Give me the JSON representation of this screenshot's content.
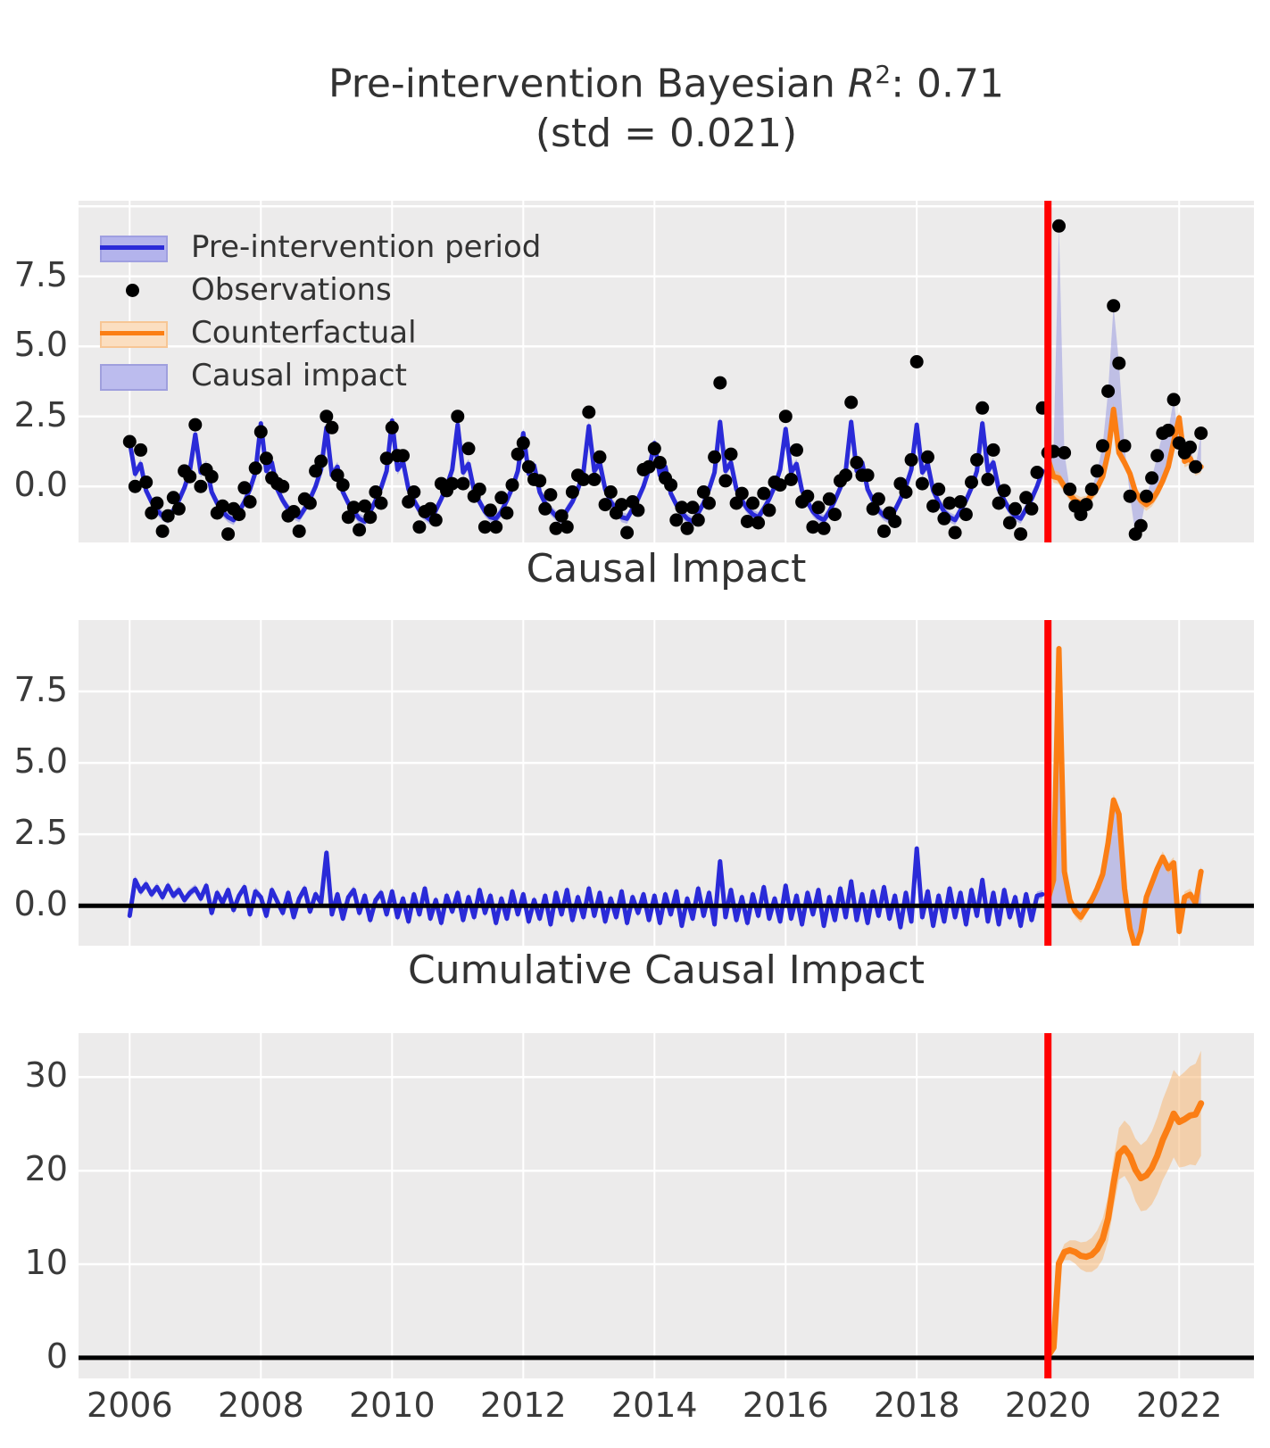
{
  "figure": {
    "title_line1_prefix": "Pre-intervention Bayesian ",
    "title_line1_rvar": "R",
    "title_line1_sup": "2",
    "title_line1_suffix": ": 0.71",
    "title_line2": "(std = 0.021)"
  },
  "legend": {
    "items": [
      {
        "label": "Pre-intervention period",
        "swatch": "blue-line-band"
      },
      {
        "label": "Observations",
        "swatch": "black-dot"
      },
      {
        "label": "Counterfactual",
        "swatch": "orange-line-band"
      },
      {
        "label": "Causal impact",
        "swatch": "periwinkle-patch"
      }
    ]
  },
  "chart_data": {
    "type": "line",
    "title": "Pre-intervention Bayesian R2: 0.71 (std = 0.021)",
    "x_start": 2006.0,
    "x_step": 0.083333,
    "xlim": [
      2005.22,
      2023.14
    ],
    "intervention_x": 2020.0,
    "xticks": [
      2006,
      2008,
      2010,
      2012,
      2014,
      2016,
      2018,
      2020,
      2022
    ],
    "xtick_labels": [
      "2006",
      "2008",
      "2010",
      "2012",
      "2014",
      "2016",
      "2018",
      "2020",
      "2022"
    ],
    "colors": {
      "pre_line": "#2a2ad8",
      "pre_band": "#8c8ce0",
      "counterfactual_line": "#fb7e14",
      "counterfactual_band": "#f7b877",
      "impact_fill": "#9a9ae0",
      "observations": "#000000",
      "intervention_line": "#ff0000",
      "zero_line": "#000000",
      "panel_bg": "#ecebeb",
      "grid": "#ffffff",
      "text": "#3a3a3a"
    },
    "bands": {
      "panel1_pre": 0.18,
      "panel1_post": 0.22,
      "panel2_pre": 0.15,
      "panel2_post": 0.2,
      "panel3_start": 0.3,
      "panel3_growth": 0.19
    },
    "panels": [
      {
        "title": "",
        "ylim": [
          -2.0,
          10.2
        ],
        "yticks": [
          0.0,
          2.5,
          5.0,
          7.5
        ],
        "ytick_labels": [
          "0.0",
          "2.5",
          "5.0",
          "7.5"
        ],
        "ygrid": [
          0,
          2.5,
          5,
          7.5,
          10
        ]
      },
      {
        "title": "Causal Impact",
        "ylim": [
          -1.4,
          10.0
        ],
        "yticks": [
          0.0,
          2.5,
          5.0,
          7.5
        ],
        "ytick_labels": [
          "0.0",
          "2.5",
          "5.0",
          "7.5"
        ],
        "ygrid": [
          0,
          2.5,
          5,
          7.5
        ]
      },
      {
        "title": "Cumulative Causal Impact",
        "ylim": [
          -2.2,
          34.7
        ],
        "yticks": [
          0,
          10,
          20,
          30
        ],
        "ytick_labels": [
          "0",
          "10",
          "20",
          "30"
        ],
        "ygrid": [
          0,
          10,
          20,
          30
        ]
      }
    ],
    "series": {
      "fitted_pre": [
        1.6,
        0.45,
        0.8,
        -0.15,
        -0.55,
        -0.85,
        -1.05,
        -1.15,
        -0.85,
        -0.5,
        -0.05,
        0.55,
        1.85,
        0.5,
        0.75,
        -0.2,
        -0.6,
        -0.9,
        -1.1,
        -1.2,
        -0.9,
        -0.55,
        -0.1,
        0.5,
        2.25,
        0.55,
        0.85,
        -0.1,
        -0.5,
        -0.8,
        -1.0,
        -1.1,
        -0.8,
        -0.45,
        0.0,
        0.6,
        2.1,
        0.4,
        0.7,
        -0.2,
        -0.6,
        -0.9,
        -1.15,
        -1.25,
        -0.9,
        -0.5,
        -0.05,
        0.55,
        2.35,
        0.6,
        0.9,
        -0.1,
        -0.5,
        -0.85,
        -1.05,
        -1.2,
        -0.85,
        -0.45,
        0.0,
        0.6,
        2.2,
        0.5,
        0.8,
        -0.15,
        -0.55,
        -0.9,
        -1.1,
        -1.15,
        -0.9,
        -0.5,
        -0.05,
        0.55,
        1.9,
        0.45,
        0.75,
        -0.2,
        -0.6,
        -0.85,
        -1.05,
        -1.2,
        -0.85,
        -0.55,
        -0.1,
        0.5,
        2.15,
        0.55,
        0.85,
        -0.1,
        -0.55,
        -0.8,
        -1.1,
        -1.15,
        -0.8,
        -0.45,
        0.0,
        0.6,
        1.55,
        0.4,
        0.7,
        -0.25,
        -0.65,
        -0.95,
        -1.15,
        -1.25,
        -0.95,
        -0.6,
        -0.1,
        0.5,
        2.3,
        0.55,
        0.85,
        -0.1,
        -0.5,
        -0.8,
        -1.0,
        -1.1,
        -0.8,
        -0.45,
        0.0,
        0.6,
        2.05,
        0.5,
        0.8,
        -0.15,
        -0.55,
        -0.9,
        -1.1,
        -1.2,
        -0.9,
        -0.5,
        -0.05,
        0.55,
        2.3,
        0.55,
        0.85,
        -0.1,
        -0.5,
        -0.85,
        -1.05,
        -1.15,
        -0.85,
        -0.45,
        0.0,
        0.6,
        2.2,
        0.5,
        0.8,
        -0.15,
        -0.55,
        -0.9,
        -1.1,
        -1.2,
        -0.85,
        -0.5,
        -0.05,
        0.55,
        2.25,
        0.55,
        0.85,
        -0.1,
        -0.5,
        -0.85,
        -1.05,
        -1.15,
        -0.8,
        -0.45,
        0.0,
        0.55
      ],
      "residual_pre": [
        0.0,
        -0.45,
        0.5,
        0.3,
        -0.4,
        0.25,
        -0.55,
        0.1,
        0.45,
        -0.3,
        0.6,
        -0.2,
        0.35,
        -0.5,
        -0.15,
        0.55,
        -0.35,
        0.2,
        -0.6,
        0.4,
        -0.1,
        0.5,
        -0.45,
        0.15,
        -0.3,
        0.45,
        -0.55,
        0.2,
        0.5,
        -0.25,
        0.1,
        -0.5,
        0.35,
        -0.15,
        0.55,
        0.3,
        0.4,
        1.7,
        -0.3,
        0.25,
        -0.5,
        0.15,
        -0.4,
        0.55,
        -0.2,
        0.3,
        -0.55,
        0.45,
        -0.25,
        0.5,
        0.2,
        -0.45,
        0.3,
        -0.6,
        0.15,
        0.4,
        -0.35,
        0.55,
        -0.15,
        -0.5,
        0.3,
        -0.4,
        0.55,
        -0.2,
        0.45,
        -0.55,
        0.25,
        -0.3,
        0.5,
        -0.45,
        0.1,
        0.6,
        -0.35,
        0.25,
        -0.5,
        0.4,
        -0.2,
        0.55,
        -0.45,
        0.15,
        -0.6,
        0.35,
        0.5,
        -0.25,
        0.5,
        -0.3,
        0.2,
        -0.55,
        0.35,
        -0.15,
        0.45,
        -0.5,
        0.25,
        -0.4,
        0.6,
        0.1,
        -0.2,
        0.45,
        -0.4,
        0.3,
        -0.55,
        0.2,
        -0.35,
        0.5,
        -0.25,
        0.4,
        -0.5,
        0.55,
        1.4,
        -0.35,
        0.3,
        -0.5,
        0.25,
        -0.45,
        0.4,
        -0.2,
        0.55,
        -0.4,
        0.15,
        -0.55,
        0.45,
        -0.25,
        0.5,
        -0.4,
        0.2,
        -0.55,
        0.35,
        -0.3,
        0.45,
        -0.5,
        0.25,
        -0.15,
        0.7,
        0.3,
        -0.45,
        0.5,
        -0.3,
        0.4,
        -0.55,
        0.2,
        -0.4,
        0.55,
        -0.2,
        0.35,
        2.25,
        -0.4,
        0.25,
        -0.55,
        0.45,
        -0.25,
        0.5,
        -0.45,
        0.3,
        -0.5,
        0.2,
        0.4,
        0.55,
        -0.3,
        0.45,
        -0.5,
        0.35,
        -0.45,
        0.25,
        -0.55,
        0.4,
        -0.35,
        0.5,
        2.25
      ],
      "impact_pre": [
        -0.35,
        0.9,
        0.5,
        0.75,
        0.4,
        0.65,
        0.3,
        0.7,
        0.35,
        0.55,
        0.2,
        0.45,
        0.6,
        0.25,
        0.7,
        -0.25,
        0.45,
        0.1,
        0.55,
        -0.15,
        0.35,
        0.65,
        -0.3,
        0.5,
        0.3,
        -0.35,
        0.55,
        0.15,
        -0.25,
        0.45,
        -0.4,
        0.25,
        0.6,
        -0.2,
        0.4,
        0.1,
        1.85,
        -0.3,
        0.4,
        -0.45,
        0.3,
        0.55,
        -0.25,
        0.35,
        -0.5,
        0.2,
        0.45,
        -0.3,
        0.5,
        -0.4,
        0.25,
        -0.55,
        0.4,
        -0.3,
        0.6,
        -0.45,
        0.2,
        -0.6,
        0.35,
        -0.2,
        0.45,
        -0.5,
        0.3,
        -0.4,
        0.55,
        -0.25,
        0.35,
        -0.6,
        0.25,
        -0.45,
        0.5,
        -0.3,
        0.4,
        -0.55,
        0.2,
        -0.45,
        0.35,
        -0.65,
        0.45,
        -0.3,
        0.55,
        -0.5,
        0.3,
        -0.4,
        0.6,
        -0.35,
        0.45,
        -0.55,
        0.25,
        -0.4,
        0.5,
        -0.6,
        0.3,
        -0.25,
        0.4,
        -0.5,
        0.35,
        -0.6,
        0.4,
        -0.3,
        0.5,
        -0.7,
        0.25,
        -0.45,
        0.6,
        -0.35,
        0.45,
        -0.65,
        1.55,
        -0.4,
        0.55,
        -0.5,
        0.3,
        -0.6,
        0.4,
        -0.35,
        0.65,
        -0.45,
        0.25,
        -0.55,
        0.7,
        -0.45,
        0.35,
        -0.65,
        0.45,
        -0.3,
        0.55,
        -0.7,
        0.3,
        -0.5,
        0.6,
        -0.4,
        0.85,
        -0.5,
        0.4,
        -0.6,
        0.5,
        -0.35,
        0.65,
        -0.45,
        0.35,
        -0.75,
        0.45,
        -0.55,
        2.0,
        -0.4,
        0.5,
        -0.7,
        0.35,
        -0.55,
        0.6,
        -0.4,
        0.45,
        -0.65,
        0.55,
        -0.35,
        0.9,
        -0.55,
        0.45,
        -0.65,
        0.55,
        -0.4,
        0.3,
        -0.7,
        0.4,
        -0.5,
        0.35,
        0.4
      ],
      "counterfactual_post": [
        1.0,
        0.35,
        0.3,
        0.0,
        -0.3,
        -0.5,
        -0.6,
        -0.55,
        -0.3,
        -0.05,
        0.35,
        1.2,
        2.75,
        1.2,
        0.85,
        0.45,
        -0.2,
        -0.5,
        -0.65,
        -0.5,
        -0.2,
        0.2,
        0.7,
        1.6,
        2.45,
        0.9,
        1.0,
        0.6,
        0.7
      ],
      "impact_post": [
        0.2,
        0.9,
        9.0,
        1.2,
        0.2,
        -0.2,
        -0.4,
        -0.1,
        0.2,
        0.6,
        1.1,
        2.2,
        3.7,
        3.2,
        0.6,
        -0.8,
        -1.5,
        -0.9,
        0.3,
        0.8,
        1.3,
        1.7,
        1.3,
        1.5,
        -0.9,
        0.3,
        0.4,
        0.1,
        1.2
      ]
    }
  }
}
